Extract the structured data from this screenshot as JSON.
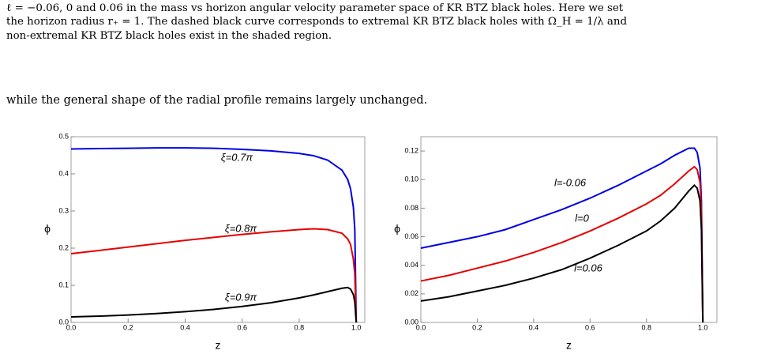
{
  "text": {
    "caption_lines": [
      "ℓ = −0.06, 0 and 0.06 in the mass vs horizon angular velocity parameter space of KR BTZ black holes. Here we set",
      "the horizon radius r₊ = 1. The dashed black curve corresponds to extremal KR BTZ black holes with Ω_H = 1/λ and",
      "non-extremal KR BTZ black holes exist in the shaded region."
    ],
    "paragraph": "while the general shape of the radial profile remains largely unchanged."
  },
  "chart_data": [
    {
      "type": "line",
      "x_label": "z",
      "y_label": "ϕ",
      "x": [
        0,
        0.1,
        0.2,
        0.3,
        0.4,
        0.5,
        0.6,
        0.7,
        0.8,
        0.85,
        0.9,
        0.95,
        0.97,
        0.98,
        0.99,
        0.995,
        1.0
      ],
      "series": [
        {
          "name": "ξ=0.7π",
          "color": "#0000e6",
          "values": [
            0.467,
            0.468,
            0.469,
            0.47,
            0.47,
            0.469,
            0.466,
            0.462,
            0.455,
            0.449,
            0.437,
            0.41,
            0.385,
            0.36,
            0.31,
            0.25,
            0.0
          ]
        },
        {
          "name": "ξ=0.8π",
          "color": "#e60000",
          "values": [
            0.185,
            0.194,
            0.203,
            0.212,
            0.221,
            0.229,
            0.237,
            0.244,
            0.25,
            0.252,
            0.25,
            0.24,
            0.225,
            0.21,
            0.17,
            0.13,
            0.0
          ]
        },
        {
          "name": "ξ=0.9π",
          "color": "#000000",
          "values": [
            0.015,
            0.017,
            0.02,
            0.024,
            0.029,
            0.035,
            0.043,
            0.053,
            0.066,
            0.074,
            0.083,
            0.092,
            0.094,
            0.09,
            0.075,
            0.055,
            0.0
          ]
        }
      ],
      "xlim": [
        0,
        1.03
      ],
      "xticks": [
        {
          "value": 0,
          "label": "0.0"
        },
        0.2,
        0.4,
        0.6,
        0.8,
        {
          "value": 1,
          "label": "1.0"
        }
      ],
      "ylim": [
        0,
        0.5
      ],
      "yticks": [
        {
          "value": 0,
          "label": "0.0"
        },
        0.1,
        0.2,
        0.3,
        0.4,
        0.5
      ]
    },
    {
      "type": "line",
      "x_label": "z",
      "y_label": "ϕ",
      "x": [
        0,
        0.1,
        0.2,
        0.3,
        0.4,
        0.5,
        0.6,
        0.7,
        0.8,
        0.85,
        0.9,
        0.95,
        0.97,
        0.98,
        0.99,
        0.995,
        1.0
      ],
      "series": [
        {
          "name": "l=-0.06",
          "color": "#0000e6",
          "values": [
            0.052,
            0.056,
            0.06,
            0.065,
            0.072,
            0.079,
            0.087,
            0.096,
            0.106,
            0.111,
            0.117,
            0.122,
            0.122,
            0.119,
            0.108,
            0.085,
            0.0
          ]
        },
        {
          "name": "l=0",
          "color": "#e60000",
          "values": [
            0.029,
            0.033,
            0.038,
            0.043,
            0.049,
            0.056,
            0.064,
            0.073,
            0.083,
            0.089,
            0.097,
            0.106,
            0.109,
            0.107,
            0.098,
            0.078,
            0.0
          ]
        },
        {
          "name": "l=0.06",
          "color": "#000000",
          "values": [
            0.015,
            0.018,
            0.022,
            0.026,
            0.031,
            0.037,
            0.045,
            0.054,
            0.064,
            0.071,
            0.08,
            0.092,
            0.096,
            0.094,
            0.085,
            0.065,
            0.0
          ]
        }
      ],
      "xlim": [
        0,
        1.05
      ],
      "xticks": [
        {
          "value": 0,
          "label": "0.0"
        },
        0.2,
        0.4,
        0.6,
        0.8,
        {
          "value": 1,
          "label": "1.0"
        }
      ],
      "ylim": [
        0,
        0.13
      ],
      "yticks": [
        {
          "value": 0,
          "label": "0.00"
        },
        {
          "value": 0.02,
          "label": "0.02"
        },
        {
          "value": 0.04,
          "label": "0.04"
        },
        {
          "value": 0.06,
          "label": "0.06"
        },
        {
          "value": 0.08,
          "label": "0.08"
        },
        {
          "value": 0.1,
          "label": "0.10"
        },
        {
          "value": 0.12,
          "label": "0.12"
        }
      ]
    }
  ]
}
